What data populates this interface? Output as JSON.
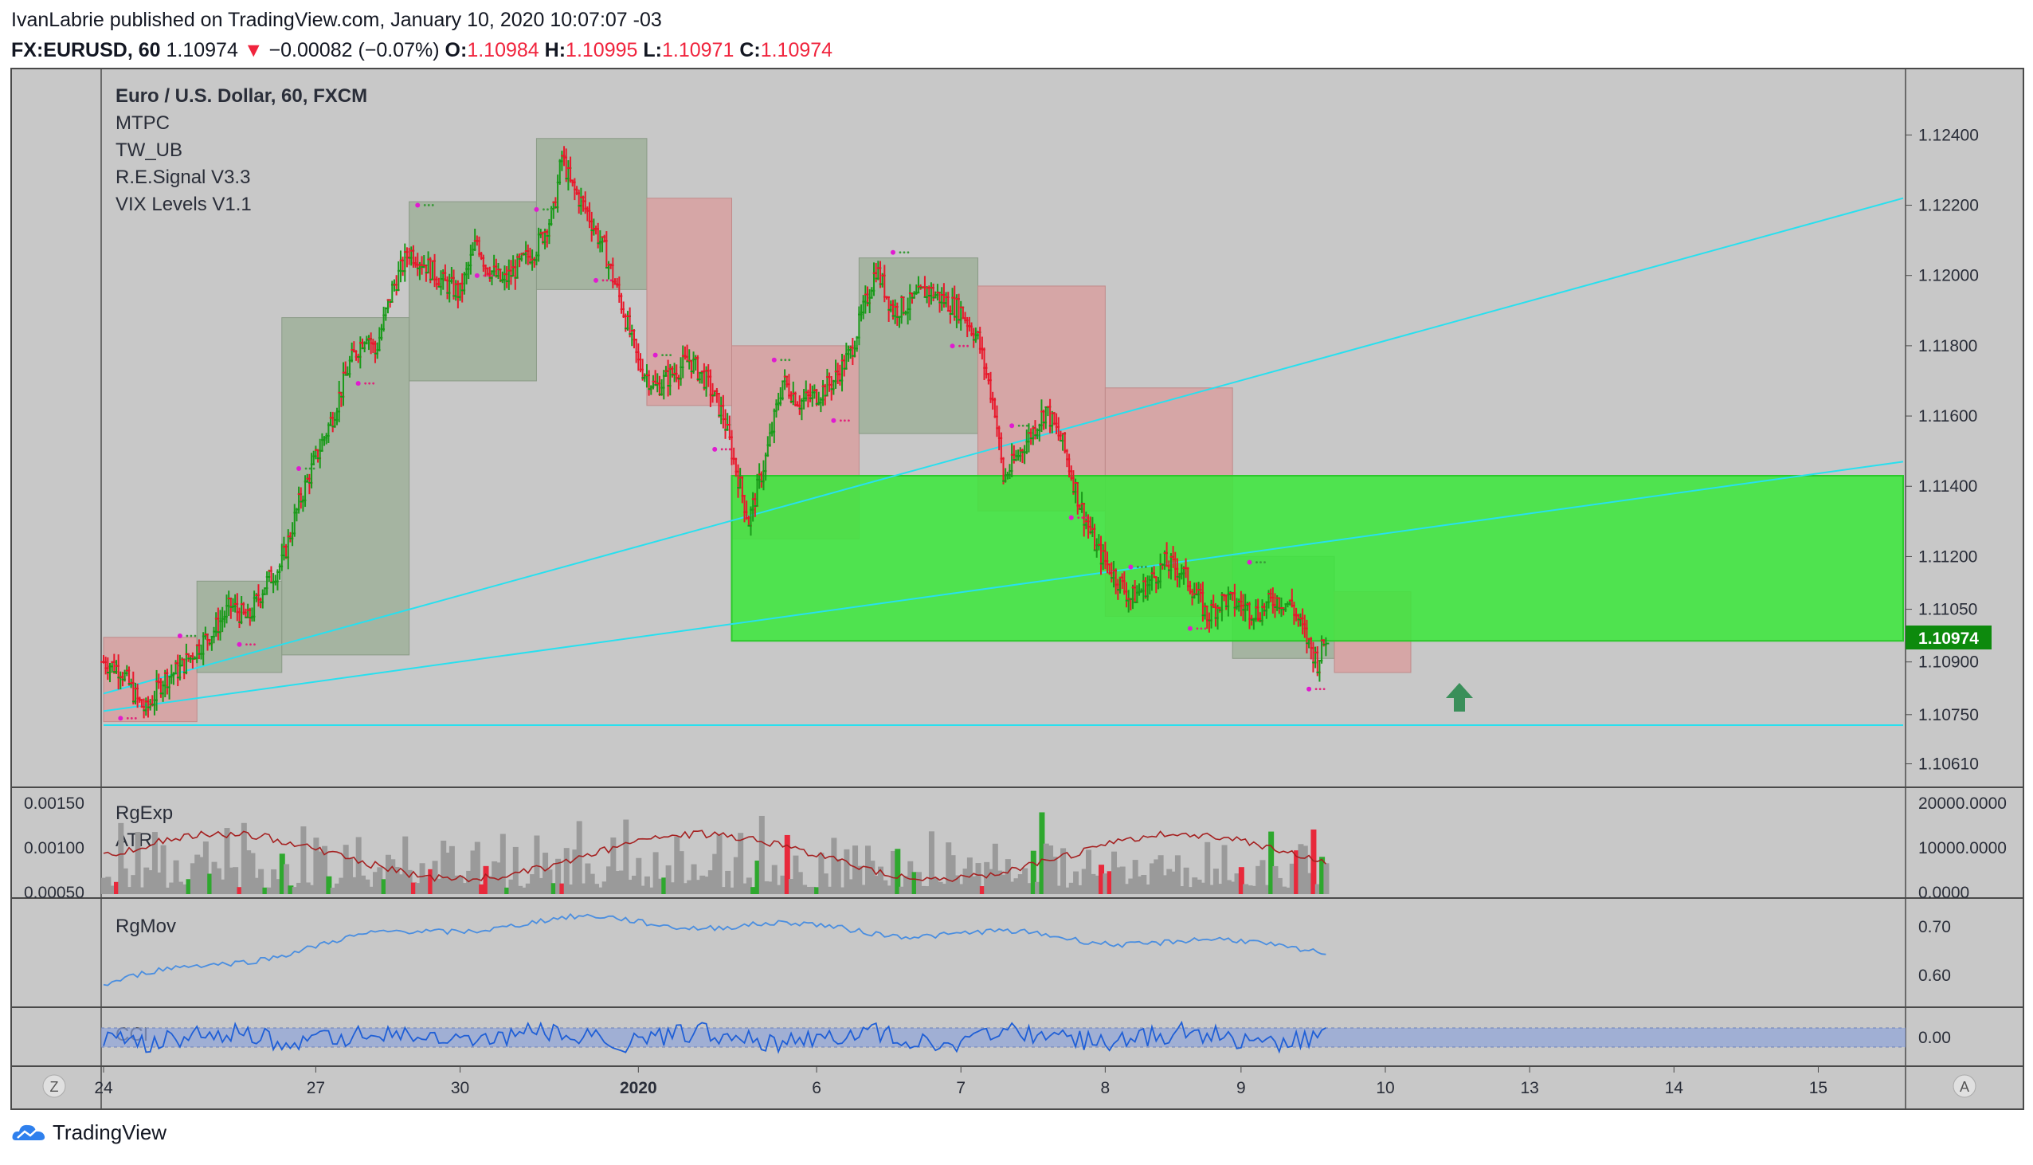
{
  "header": {
    "published": "IvanLabrie published on TradingView.com, January 10, 2020 10:07:07 -03",
    "symbol": "FX:EURUSD, 60",
    "last": "1.10974",
    "change": "−0.00082 (−0.07%)",
    "o_label": "O:",
    "o_val": "1.10984",
    "h_label": "H:",
    "h_val": "1.10995",
    "l_label": "L:",
    "l_val": "1.10971",
    "c_label": "C:",
    "c_val": "1.10974"
  },
  "legend": {
    "title": "Euro / U.S. Dollar, 60, FXCM",
    "items": [
      "MTPC",
      "TW_UB",
      "R.E.Signal V3.3",
      "VIX Levels V1.1"
    ]
  },
  "pane_labels": {
    "rgexp": "RgExp",
    "atr": "ATR",
    "rgmov": "RgMov",
    "cci": "CCI"
  },
  "colors": {
    "bull": "#1a9a1a",
    "bear": "#e8192c",
    "zone": "#3ee63e",
    "trend": "#28e0ef",
    "price_tag": "#0d8a0d"
  },
  "icons": {
    "signal": "green-up-arrow-icon",
    "logo": "tradingview-cloud-icon"
  },
  "footer": {
    "brand": "TradingView"
  },
  "toolbar": {
    "z_label": "Z",
    "a_label": "A"
  },
  "chart_data": [
    {
      "type": "candlestick",
      "title": "Euro / U.S. Dollar, 60, FXCM",
      "x_ticks": [
        "24",
        "27",
        "30",
        "2020",
        "6",
        "7",
        "8",
        "9",
        "10",
        "13",
        "14",
        "15"
      ],
      "y_ticks": [
        "1.12400",
        "1.12200",
        "1.12000",
        "1.11800",
        "1.11600",
        "1.11400",
        "1.11200",
        "1.11050",
        "1.10900",
        "1.10750",
        "1.10610"
      ],
      "ylim": [
        1.1055,
        1.1258
      ],
      "last_price": "1.10974",
      "close_path": [
        {
          "x": 0,
          "y": 1.109
        },
        {
          "x": 2,
          "y": 1.1088
        },
        {
          "x": 4,
          "y": 1.1079
        },
        {
          "x": 5,
          "y": 1.1076
        },
        {
          "x": 7,
          "y": 1.1085
        },
        {
          "x": 9,
          "y": 1.1088
        },
        {
          "x": 11,
          "y": 1.1094
        },
        {
          "x": 13,
          "y": 1.1099
        },
        {
          "x": 15,
          "y": 1.1106
        },
        {
          "x": 17,
          "y": 1.1102
        },
        {
          "x": 19,
          "y": 1.1112
        },
        {
          "x": 21,
          "y": 1.1118
        },
        {
          "x": 23,
          "y": 1.1135
        },
        {
          "x": 25,
          "y": 1.1148
        },
        {
          "x": 27,
          "y": 1.116
        },
        {
          "x": 29,
          "y": 1.1175
        },
        {
          "x": 31,
          "y": 1.1184
        },
        {
          "x": 32,
          "y": 1.1178
        },
        {
          "x": 34,
          "y": 1.1196
        },
        {
          "x": 36,
          "y": 1.1207
        },
        {
          "x": 38,
          "y": 1.1203
        },
        {
          "x": 40,
          "y": 1.1198
        },
        {
          "x": 42,
          "y": 1.1195
        },
        {
          "x": 44,
          "y": 1.121
        },
        {
          "x": 45,
          "y": 1.1203
        },
        {
          "x": 47,
          "y": 1.1198
        },
        {
          "x": 49,
          "y": 1.1203
        },
        {
          "x": 51,
          "y": 1.1208
        },
        {
          "x": 53,
          "y": 1.1218
        },
        {
          "x": 54,
          "y": 1.1234
        },
        {
          "x": 55,
          "y": 1.1226
        },
        {
          "x": 57,
          "y": 1.1218
        },
        {
          "x": 59,
          "y": 1.1207
        },
        {
          "x": 61,
          "y": 1.1192
        },
        {
          "x": 63,
          "y": 1.1175
        },
        {
          "x": 65,
          "y": 1.1168
        },
        {
          "x": 67,
          "y": 1.1172
        },
        {
          "x": 69,
          "y": 1.1176
        },
        {
          "x": 71,
          "y": 1.117
        },
        {
          "x": 73,
          "y": 1.116
        },
        {
          "x": 75,
          "y": 1.114
        },
        {
          "x": 76,
          "y": 1.113
        },
        {
          "x": 78,
          "y": 1.1148
        },
        {
          "x": 80,
          "y": 1.117
        },
        {
          "x": 82,
          "y": 1.1164
        },
        {
          "x": 84,
          "y": 1.1166
        },
        {
          "x": 86,
          "y": 1.117
        },
        {
          "x": 88,
          "y": 1.1178
        },
        {
          "x": 90,
          "y": 1.1194
        },
        {
          "x": 91,
          "y": 1.1202
        },
        {
          "x": 93,
          "y": 1.119
        },
        {
          "x": 95,
          "y": 1.1192
        },
        {
          "x": 97,
          "y": 1.1196
        },
        {
          "x": 99,
          "y": 1.1193
        },
        {
          "x": 101,
          "y": 1.119
        },
        {
          "x": 103,
          "y": 1.1182
        },
        {
          "x": 105,
          "y": 1.1162
        },
        {
          "x": 106,
          "y": 1.1142
        },
        {
          "x": 108,
          "y": 1.115
        },
        {
          "x": 110,
          "y": 1.1158
        },
        {
          "x": 111,
          "y": 1.1162
        },
        {
          "x": 113,
          "y": 1.1152
        },
        {
          "x": 115,
          "y": 1.1135
        },
        {
          "x": 117,
          "y": 1.1122
        },
        {
          "x": 119,
          "y": 1.1115
        },
        {
          "x": 121,
          "y": 1.1108
        },
        {
          "x": 123,
          "y": 1.1112
        },
        {
          "x": 125,
          "y": 1.1118
        },
        {
          "x": 127,
          "y": 1.1116
        },
        {
          "x": 129,
          "y": 1.1108
        },
        {
          "x": 130,
          "y": 1.1103
        },
        {
          "x": 132,
          "y": 1.1108
        },
        {
          "x": 134,
          "y": 1.1106
        },
        {
          "x": 136,
          "y": 1.1104
        },
        {
          "x": 138,
          "y": 1.1108
        },
        {
          "x": 140,
          "y": 1.1106
        },
        {
          "x": 142,
          "y": 1.1095
        },
        {
          "x": 143,
          "y": 1.109
        },
        {
          "x": 144,
          "y": 1.1097
        }
      ],
      "zones": [
        {
          "kind": "bear",
          "x0": 0,
          "x1": 11,
          "y0": 1.1073,
          "y1": 1.1097
        },
        {
          "kind": "bull",
          "x0": 11,
          "x1": 21,
          "y0": 1.1087,
          "y1": 1.1113
        },
        {
          "kind": "bull",
          "x0": 21,
          "x1": 36,
          "y0": 1.1092,
          "y1": 1.1188
        },
        {
          "kind": "bull",
          "x0": 36,
          "x1": 51,
          "y0": 1.117,
          "y1": 1.1221
        },
        {
          "kind": "bull",
          "x0": 51,
          "x1": 64,
          "y0": 1.1196,
          "y1": 1.1239
        },
        {
          "kind": "bear",
          "x0": 64,
          "x1": 74,
          "y0": 1.1163,
          "y1": 1.1222
        },
        {
          "kind": "bear",
          "x0": 74,
          "x1": 89,
          "y0": 1.1125,
          "y1": 1.118
        },
        {
          "kind": "bull",
          "x0": 89,
          "x1": 103,
          "y0": 1.1155,
          "y1": 1.1205
        },
        {
          "kind": "bear",
          "x0": 103,
          "x1": 118,
          "y0": 1.1133,
          "y1": 1.1197
        },
        {
          "kind": "bear",
          "x0": 118,
          "x1": 133,
          "y0": 1.1103,
          "y1": 1.1168
        },
        {
          "kind": "bull",
          "x0": 133,
          "x1": 145,
          "y0": 1.1091,
          "y1": 1.112
        },
        {
          "kind": "bear",
          "x0": 145,
          "x1": 154,
          "y0": 1.1087,
          "y1": 1.111
        }
      ],
      "support_zone": {
        "x0": 74,
        "x1": 212,
        "y0": 1.1096,
        "y1": 1.1143
      },
      "trend_lines": [
        {
          "x0": 0,
          "y0": 1.1081,
          "x1": 212,
          "y1": 1.1222
        },
        {
          "x0": 0,
          "y0": 1.1076,
          "x1": 212,
          "y1": 1.1147
        },
        {
          "x0": 0,
          "y0": 1.1072,
          "x1": 212,
          "y1": 1.1072
        }
      ]
    },
    {
      "type": "bar",
      "title": "RgExp / ATR",
      "y_ticks_left": [
        "0.00150",
        "0.00100",
        "0.00050"
      ],
      "y_ticks_right": [
        "20000.0000",
        "10000.0000",
        "0.0000"
      ],
      "ylim": [
        0.0004,
        0.0017
      ]
    },
    {
      "type": "line",
      "title": "RgMov",
      "y_ticks": [
        "0.70",
        "0.60"
      ],
      "ylim": [
        0.52,
        0.74
      ]
    },
    {
      "type": "line",
      "title": "CCI",
      "y_ticks": [
        "0.00"
      ]
    }
  ]
}
